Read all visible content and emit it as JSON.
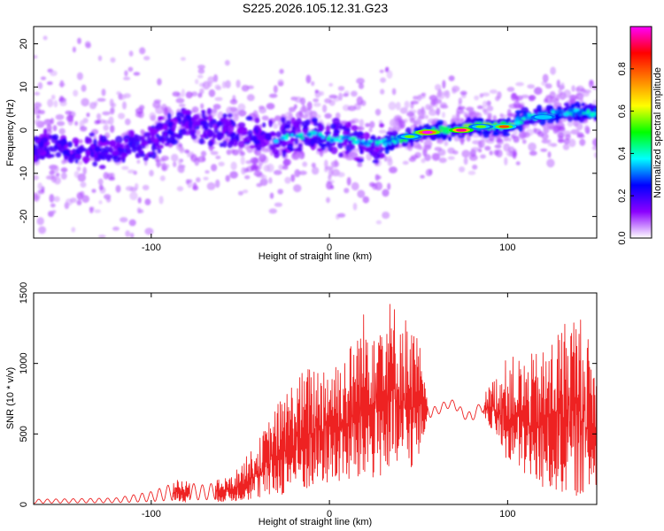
{
  "figure_title": "S225.2026.105.12.31.G23",
  "chart_data": [
    {
      "type": "heatmap",
      "xlabel": "Height of straight line (km)",
      "ylabel": "Frequency (Hz)",
      "xlim": [
        -166,
        150
      ],
      "ylim": [
        -25,
        24
      ],
      "xticks": [
        -100,
        0,
        100
      ],
      "yticks": [
        -20,
        -10,
        0,
        10,
        20
      ],
      "ridge": [
        {
          "x": -160,
          "y": -4
        },
        {
          "x": -140,
          "y": -4
        },
        {
          "x": -120,
          "y": -5
        },
        {
          "x": -100,
          "y": -3
        },
        {
          "x": -90,
          "y": 1
        },
        {
          "x": -70,
          "y": 1
        },
        {
          "x": -50,
          "y": -1
        },
        {
          "x": -30,
          "y": -2
        },
        {
          "x": -10,
          "y": -1
        },
        {
          "x": 0,
          "y": -2
        },
        {
          "x": 10,
          "y": -2
        },
        {
          "x": 20,
          "y": -3
        },
        {
          "x": 30,
          "y": -3
        },
        {
          "x": 40,
          "y": -2
        },
        {
          "x": 50,
          "y": -1
        },
        {
          "x": 60,
          "y": 0
        },
        {
          "x": 70,
          "y": 0
        },
        {
          "x": 80,
          "y": 1
        },
        {
          "x": 100,
          "y": 1
        },
        {
          "x": 110,
          "y": 3
        },
        {
          "x": 130,
          "y": 4
        },
        {
          "x": 148,
          "y": 4
        }
      ],
      "peaks": [
        {
          "x": 55,
          "y": -0.5,
          "amplitude": 1.0
        },
        {
          "x": 74,
          "y": 0,
          "amplitude": 0.95
        },
        {
          "x": 98,
          "y": 0.8,
          "amplitude": 0.8
        },
        {
          "x": 45,
          "y": -1.5,
          "amplitude": 0.55
        },
        {
          "x": 85,
          "y": 0.8,
          "amplitude": 0.55
        },
        {
          "x": 120,
          "y": 3,
          "amplitude": 0.35
        }
      ],
      "colorbar": {
        "label": "Normalized spectral amplitude",
        "range": [
          0,
          1
        ],
        "ticks": [
          "0.0",
          "0.2",
          "0.4",
          "0.6",
          "0.8"
        ],
        "colors": [
          "#ffffff",
          "#8b00ff",
          "#0000ff",
          "#00ffff",
          "#00ff00",
          "#ffff00",
          "#ff8000",
          "#ff0000",
          "#ff00ff"
        ]
      }
    },
    {
      "type": "line",
      "xlabel": "Height of straight line (km)",
      "ylabel": "SNR (10 * v/v)",
      "xlim": [
        -166,
        150
      ],
      "ylim": [
        0,
        1500
      ],
      "xticks": [
        -100,
        0,
        100
      ],
      "yticks": [
        0,
        500,
        1000,
        1500
      ],
      "color": "#ee2222",
      "series": [
        {
          "name": "SNR",
          "envelope": [
            {
              "x": -166,
              "lo": 5,
              "hi": 40
            },
            {
              "x": -140,
              "lo": 8,
              "hi": 45
            },
            {
              "x": -120,
              "lo": 8,
              "hi": 50
            },
            {
              "x": -100,
              "lo": 12,
              "hi": 100
            },
            {
              "x": -85,
              "lo": 15,
              "hi": 180
            },
            {
              "x": -70,
              "lo": 20,
              "hi": 150
            },
            {
              "x": -55,
              "lo": 20,
              "hi": 200
            },
            {
              "x": -40,
              "lo": 40,
              "hi": 450
            },
            {
              "x": -30,
              "lo": 60,
              "hi": 700
            },
            {
              "x": -20,
              "lo": 80,
              "hi": 900
            },
            {
              "x": -10,
              "lo": 100,
              "hi": 1000
            },
            {
              "x": 0,
              "lo": 150,
              "hi": 1050
            },
            {
              "x": 10,
              "lo": 150,
              "hi": 1100
            },
            {
              "x": 20,
              "lo": 150,
              "hi": 1400
            },
            {
              "x": 30,
              "lo": 200,
              "hi": 1500
            },
            {
              "x": 40,
              "lo": 200,
              "hi": 1400
            },
            {
              "x": 50,
              "lo": 300,
              "hi": 1200
            },
            {
              "x": 55,
              "lo": 600,
              "hi": 720
            },
            {
              "x": 60,
              "lo": 620,
              "hi": 700
            },
            {
              "x": 65,
              "lo": 670,
              "hi": 740
            },
            {
              "x": 70,
              "lo": 680,
              "hi": 750
            },
            {
              "x": 75,
              "lo": 600,
              "hi": 680
            },
            {
              "x": 80,
              "lo": 580,
              "hi": 660
            },
            {
              "x": 85,
              "lo": 660,
              "hi": 740
            },
            {
              "x": 90,
              "lo": 550,
              "hi": 850
            },
            {
              "x": 100,
              "lo": 300,
              "hi": 1050
            },
            {
              "x": 110,
              "lo": 200,
              "hi": 1050
            },
            {
              "x": 120,
              "lo": 100,
              "hi": 1100
            },
            {
              "x": 130,
              "lo": 80,
              "hi": 1300
            },
            {
              "x": 140,
              "lo": 60,
              "hi": 1400
            },
            {
              "x": 150,
              "lo": 100,
              "hi": 1000
            }
          ]
        }
      ]
    }
  ]
}
